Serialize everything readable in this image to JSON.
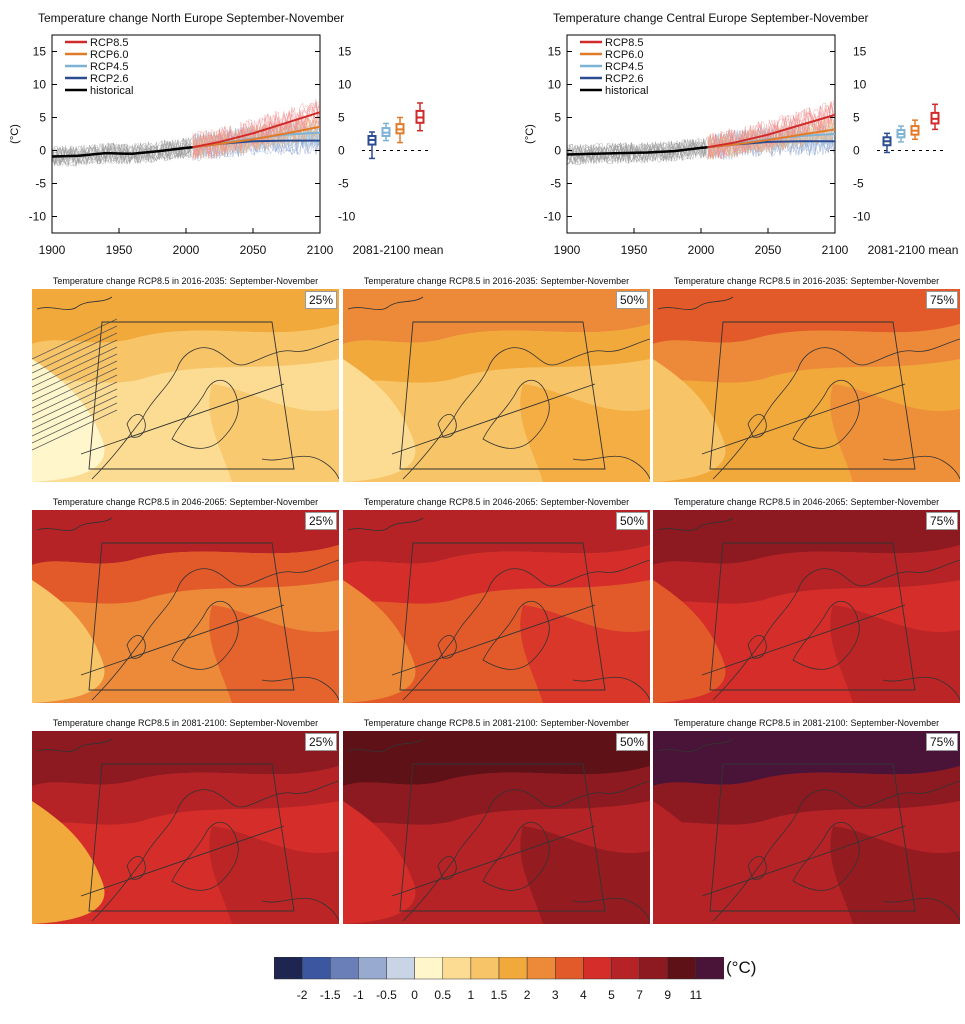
{
  "timeseries": [
    {
      "title": "Temperature change North Europe September-November",
      "legend": [
        "RCP8.5",
        "RCP6.0",
        "RCP4.5",
        "RCP2.6",
        "historical"
      ],
      "ylabel": "(°C)",
      "box_label": "2081-2100 mean"
    },
    {
      "title": "Temperature change Central Europe September-November",
      "legend": [
        "RCP8.5",
        "RCP6.0",
        "RCP4.5",
        "RCP2.6",
        "historical"
      ],
      "ylabel": "(°C)",
      "box_label": "2081-2100 mean"
    }
  ],
  "maps": [
    {
      "title": "Temperature change RCP8.5 in 2016-2035: September-November",
      "pct": "25%"
    },
    {
      "title": "Temperature change RCP8.5 in 2016-2035: September-November",
      "pct": "50%"
    },
    {
      "title": "Temperature change RCP8.5 in 2016-2035: September-November",
      "pct": "75%"
    },
    {
      "title": "Temperature change RCP8.5 in 2046-2065: September-November",
      "pct": "25%"
    },
    {
      "title": "Temperature change RCP8.5 in 2046-2065: September-November",
      "pct": "50%"
    },
    {
      "title": "Temperature change RCP8.5 in 2046-2065: September-November",
      "pct": "75%"
    },
    {
      "title": "Temperature change RCP8.5 in 2081-2100: September-November",
      "pct": "25%"
    },
    {
      "title": "Temperature change RCP8.5 in 2081-2100: September-November",
      "pct": "50%"
    },
    {
      "title": "Temperature change RCP8.5 in 2081-2100: September-November",
      "pct": "75%"
    }
  ],
  "colorbar": {
    "unit": "(°C)",
    "labels": [
      "-2",
      "-1.5",
      "-1",
      "-0.5",
      "0",
      "0.5",
      "1",
      "1.5",
      "2",
      "3",
      "4",
      "5",
      "7",
      "9",
      "11"
    ],
    "colors": [
      "#1e2550",
      "#3d56a0",
      "#6a7fb8",
      "#98aad0",
      "#c9d4e6",
      "#fff6cc",
      "#fbdc92",
      "#f7c467",
      "#f2a93b",
      "#ec8a3a",
      "#e35a2a",
      "#d52e2a",
      "#b52326",
      "#8c1a20",
      "#5e1218",
      "#4a1438"
    ]
  },
  "chart_data": [
    {
      "type": "line",
      "title": "Temperature change North Europe September-November",
      "ylabel": "(°C)",
      "xlim": [
        1900,
        2100
      ],
      "ylim": [
        -12.5,
        17.5
      ],
      "x_ticks": [
        1900,
        1950,
        2000,
        2050,
        2100
      ],
      "y_ticks": [
        -10,
        -5,
        0,
        5,
        10,
        15
      ],
      "series": [
        {
          "name": "historical",
          "color": "#000000",
          "x": [
            1900,
            1920,
            1940,
            1960,
            1980,
            2000,
            2005
          ],
          "y": [
            -0.9,
            -0.8,
            -0.4,
            -0.5,
            -0.1,
            0.4,
            0.5
          ]
        },
        {
          "name": "RCP2.6",
          "color": "#2b4c91",
          "x": [
            2005,
            2025,
            2050,
            2075,
            2100
          ],
          "y": [
            0.5,
            1.0,
            1.4,
            1.5,
            1.5
          ]
        },
        {
          "name": "RCP4.5",
          "color": "#7fb3d5",
          "x": [
            2005,
            2025,
            2050,
            2075,
            2100
          ],
          "y": [
            0.5,
            1.1,
            1.8,
            2.4,
            2.7
          ]
        },
        {
          "name": "RCP6.0",
          "color": "#e07b2a",
          "x": [
            2005,
            2025,
            2050,
            2075,
            2100
          ],
          "y": [
            0.5,
            1.0,
            1.7,
            2.6,
            3.6
          ]
        },
        {
          "name": "RCP8.5",
          "color": "#d12a2a",
          "x": [
            2005,
            2025,
            2050,
            2075,
            2100
          ],
          "y": [
            0.5,
            1.3,
            2.6,
            4.2,
            5.8
          ]
        }
      ],
      "boxes": {
        "label": "2081-2100 mean",
        "items": [
          {
            "name": "RCP2.6",
            "min": -1.2,
            "q1": 0.9,
            "median": 1.6,
            "q3": 2.2,
            "max": 2.8
          },
          {
            "name": "RCP4.5",
            "min": 1.5,
            "q1": 2.2,
            "median": 2.7,
            "q3": 3.4,
            "max": 4.1
          },
          {
            "name": "RCP6.0",
            "min": 1.2,
            "q1": 2.6,
            "median": 3.2,
            "q3": 4.0,
            "max": 5.0
          },
          {
            "name": "RCP8.5",
            "min": 3.0,
            "q1": 4.2,
            "median": 5.0,
            "q3": 6.0,
            "max": 7.2
          }
        ]
      }
    },
    {
      "type": "line",
      "title": "Temperature change Central Europe September-November",
      "ylabel": "(°C)",
      "xlim": [
        1900,
        2100
      ],
      "ylim": [
        -12.5,
        17.5
      ],
      "x_ticks": [
        1900,
        1950,
        2000,
        2050,
        2100
      ],
      "y_ticks": [
        -10,
        -5,
        0,
        5,
        10,
        15
      ],
      "series": [
        {
          "name": "historical",
          "color": "#000000",
          "x": [
            1900,
            1920,
            1940,
            1960,
            1980,
            2000,
            2005
          ],
          "y": [
            -0.6,
            -0.5,
            -0.4,
            -0.3,
            -0.1,
            0.4,
            0.5
          ]
        },
        {
          "name": "RCP2.6",
          "color": "#2b4c91",
          "x": [
            2005,
            2025,
            2050,
            2075,
            2100
          ],
          "y": [
            0.5,
            0.9,
            1.3,
            1.4,
            1.4
          ]
        },
        {
          "name": "RCP4.5",
          "color": "#7fb3d5",
          "x": [
            2005,
            2025,
            2050,
            2075,
            2100
          ],
          "y": [
            0.5,
            1.0,
            1.7,
            2.2,
            2.5
          ]
        },
        {
          "name": "RCP6.0",
          "color": "#e07b2a",
          "x": [
            2005,
            2025,
            2050,
            2075,
            2100
          ],
          "y": [
            0.5,
            0.9,
            1.6,
            2.4,
            3.2
          ]
        },
        {
          "name": "RCP8.5",
          "color": "#d12a2a",
          "x": [
            2005,
            2025,
            2050,
            2075,
            2100
          ],
          "y": [
            0.5,
            1.2,
            2.4,
            3.9,
            5.4
          ]
        }
      ],
      "boxes": {
        "label": "2081-2100 mean",
        "items": [
          {
            "name": "RCP2.6",
            "min": -0.3,
            "q1": 0.8,
            "median": 1.4,
            "q3": 2.0,
            "max": 2.6
          },
          {
            "name": "RCP4.5",
            "min": 1.3,
            "q1": 2.0,
            "median": 2.5,
            "q3": 3.1,
            "max": 3.7
          },
          {
            "name": "RCP6.0",
            "min": 1.7,
            "q1": 2.4,
            "median": 3.0,
            "q3": 3.7,
            "max": 4.6
          },
          {
            "name": "RCP8.5",
            "min": 3.2,
            "q1": 4.1,
            "median": 4.8,
            "q3": 5.7,
            "max": 7.0
          }
        ]
      }
    }
  ]
}
